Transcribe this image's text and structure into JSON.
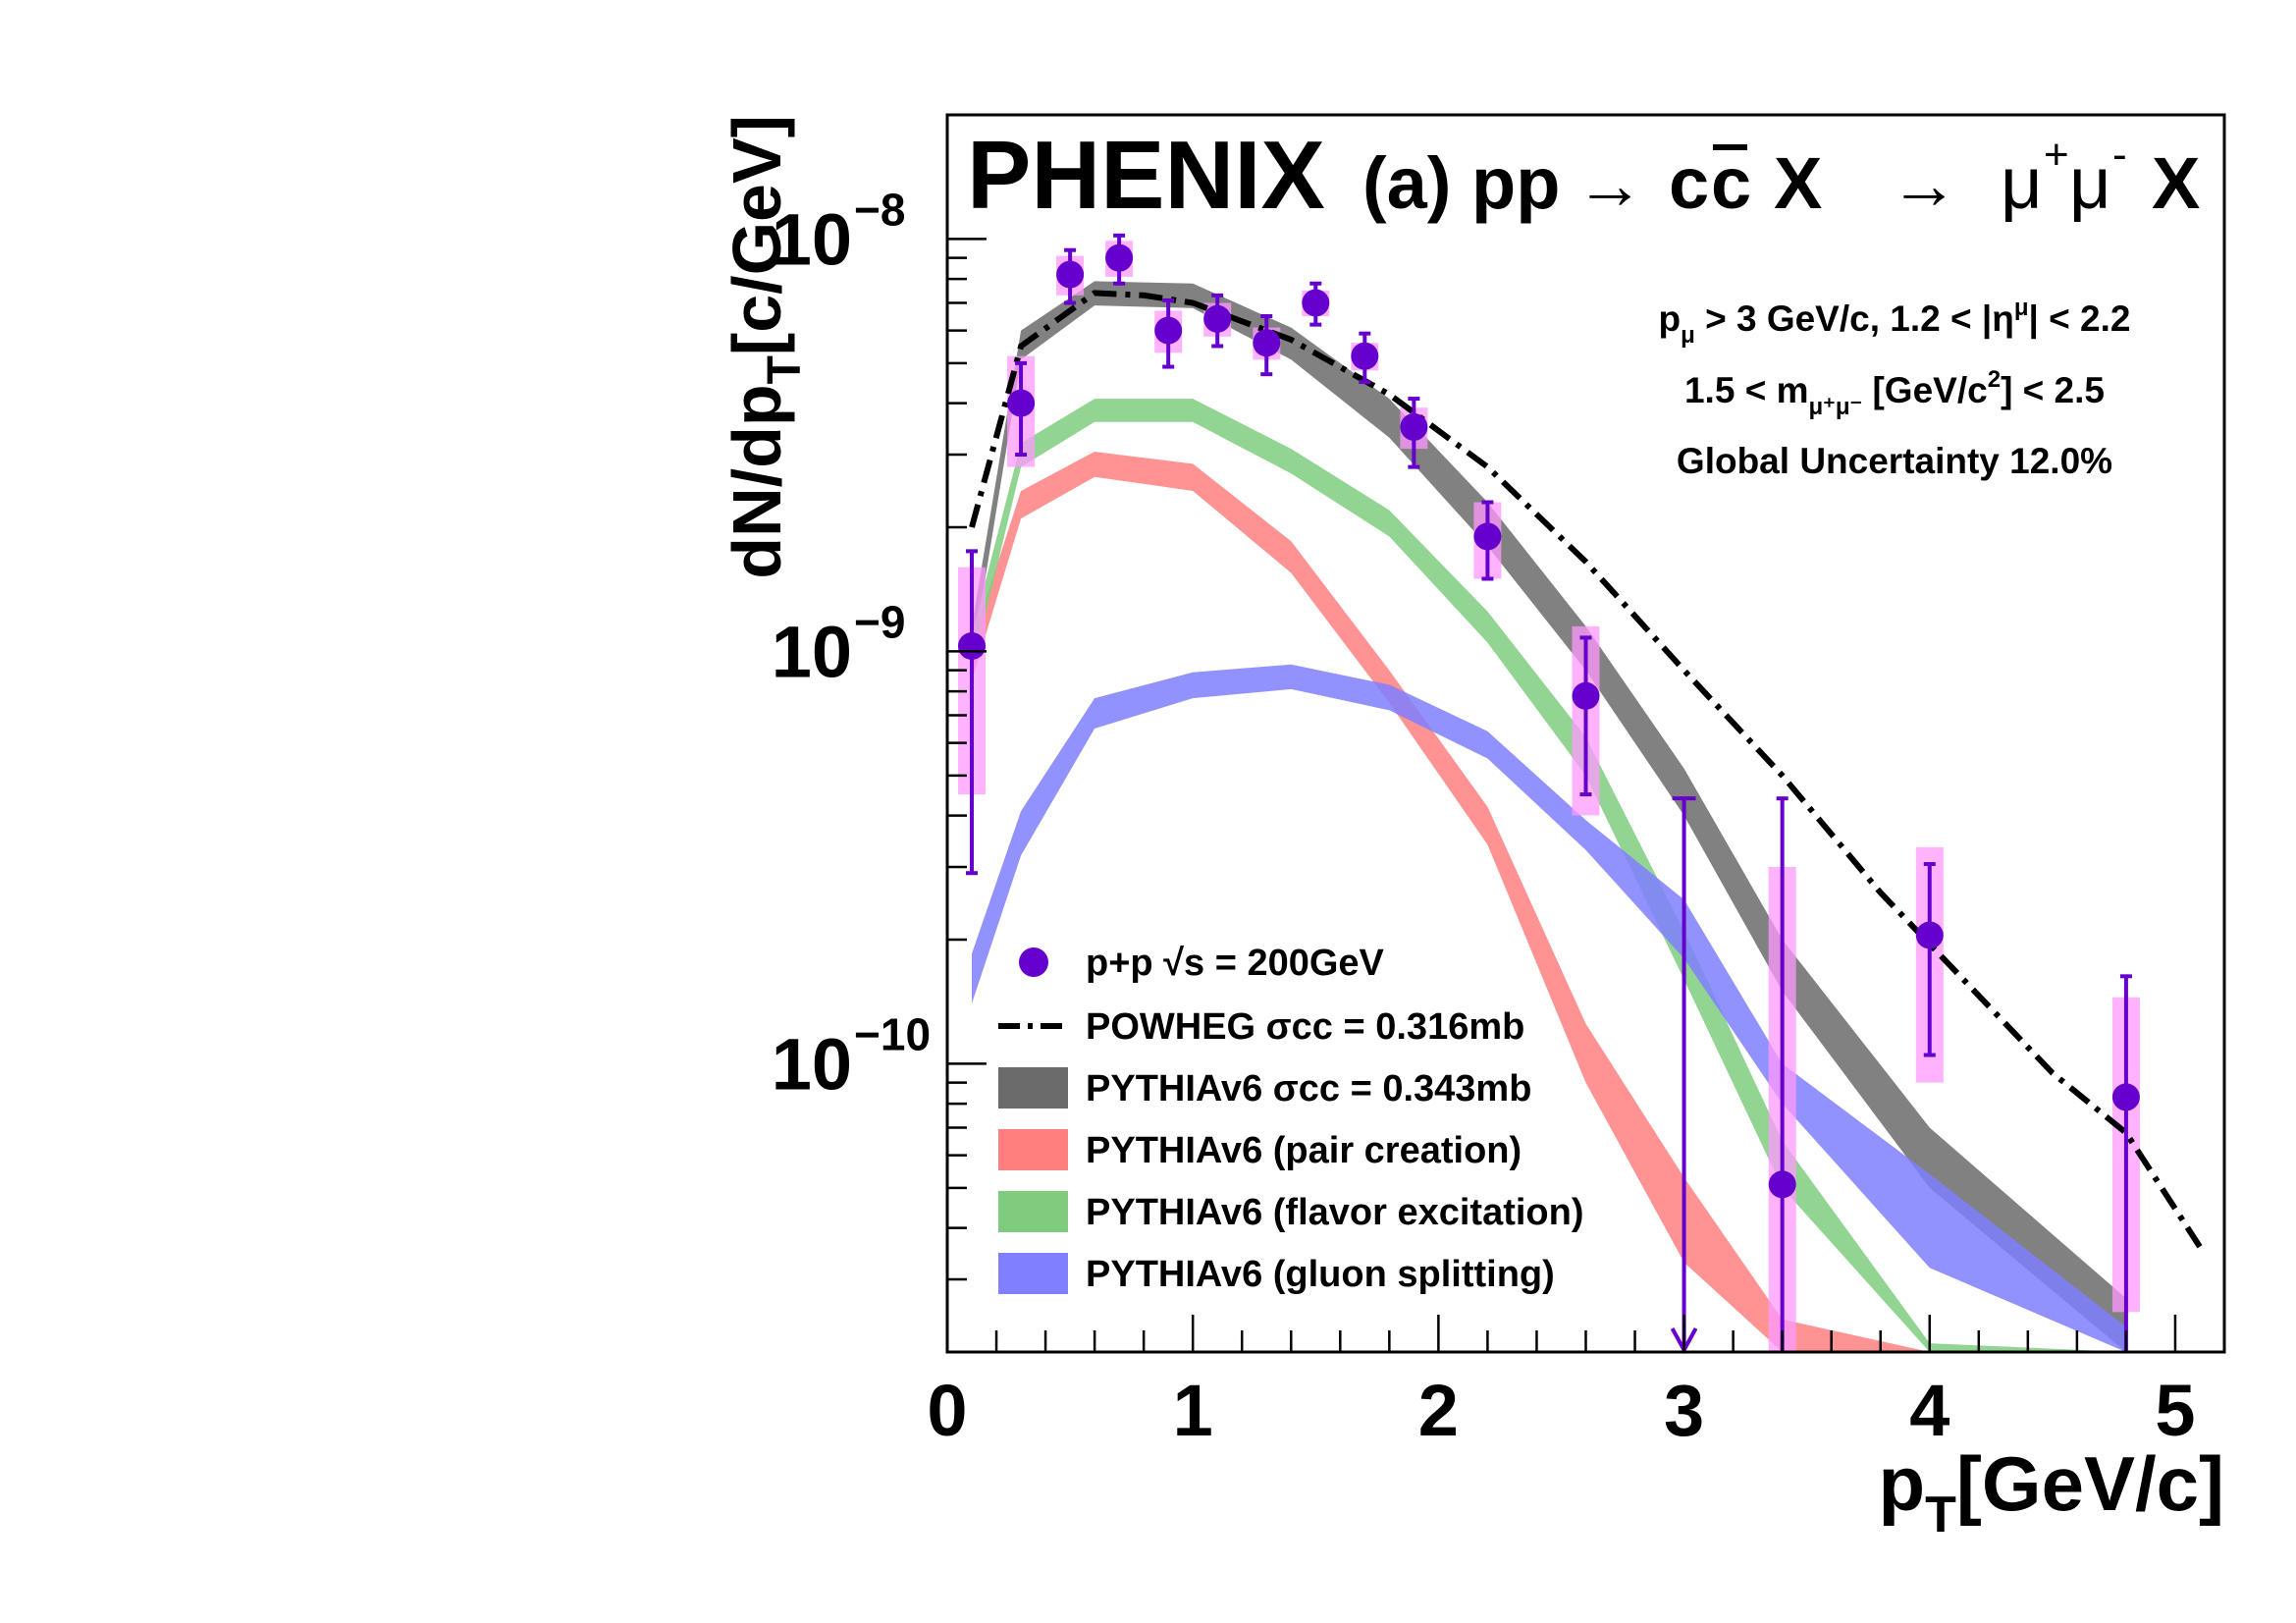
{
  "chart_data": {
    "type": "line",
    "experiment": "PHENIX",
    "title_parts": {
      "panel": "(a) pp",
      "arrow1": "→",
      "cc": "c",
      "ccbar": "c",
      "x1": "X",
      "arrow2": "→",
      "mu_plus": "μ",
      "plus": "+",
      "mu_minus": "μ",
      "minus": "-",
      "x2": "X"
    },
    "cuts": {
      "line1_pre": "p",
      "line1_sub": "μ",
      "line1_mid": " > 3 GeV/c, 1.2 < |η",
      "line1_sup": "μ",
      "line1_post": "| < 2.2",
      "line2_pre": "1.5 < m",
      "line2_sub": "μ⁺μ⁻",
      "line2_mid": " [GeV/c",
      "line2_sup": "2",
      "line2_post": "] < 2.5",
      "line3": "Global Uncertainty 12.0%"
    },
    "xaxis": {
      "label_main": "p",
      "label_sub": "T",
      "label_rest": "[GeV/c]",
      "range": [
        0,
        5.2
      ],
      "ticks": [
        0,
        1,
        2,
        3,
        4,
        5
      ],
      "tick_labels": [
        "0",
        "1",
        "2",
        "3",
        "4",
        "5"
      ]
    },
    "yaxis": {
      "label_main": "dN/dp",
      "label_sub": "T",
      "label_rest": "[c/GeV]",
      "scale": "log",
      "range": [
        2e-11,
        2e-08
      ],
      "ticks": [
        1e-10,
        1e-09,
        1e-08
      ],
      "tick_labels": [
        {
          "base": "10",
          "exp": "−10"
        },
        {
          "base": "10",
          "exp": "−9"
        },
        {
          "base": "10",
          "exp": "−8"
        }
      ]
    },
    "legend": {
      "placement": "bottom-left",
      "entries": [
        {
          "label": "p+p  √s = 200GeV",
          "kind": "marker"
        },
        {
          "label": "POWHEG σcc = 0.316mb",
          "kind": "dashdot"
        },
        {
          "label": "PYTHIAv6  σcc = 0.343mb",
          "kind": "band",
          "color": "#6b6b6b"
        },
        {
          "label": "PYTHIAv6 (pair creation)",
          "kind": "band",
          "color": "#ff7f7f"
        },
        {
          "label": "PYTHIAv6 (flavor excitation)",
          "kind": "band",
          "color": "#7fcc7f"
        },
        {
          "label": "PYTHIAv6 (gluon splitting)",
          "kind": "band",
          "color": "#7f7fff"
        }
      ]
    },
    "colors": {
      "data_marker": "#6600cc",
      "sys_box": "#ff99ff",
      "total_band": "#6b6b6b",
      "pair_band": "#ff7f7f",
      "flavor_band": "#7fcc7f",
      "gluon_band": "#7f7fff",
      "powheg": "#000000"
    },
    "data_points": [
      {
        "x": 0.1,
        "y": 1.03e-09,
        "stat": [
          2.9e-10,
          1.75e-09
        ],
        "sys": [
          4.5e-10,
          1.6e-09
        ]
      },
      {
        "x": 0.3,
        "y": 4e-09,
        "stat": [
          3e-09,
          5e-09
        ],
        "sys": [
          2.8e-09,
          5.2e-09
        ]
      },
      {
        "x": 0.5,
        "y": 8.2e-09,
        "stat": [
          7e-09,
          9.4e-09
        ],
        "sys": [
          7.3e-09,
          9.1e-09
        ]
      },
      {
        "x": 0.7,
        "y": 9e-09,
        "stat": [
          7.8e-09,
          1.02e-08
        ],
        "sys": [
          8.1e-09,
          9.9e-09
        ]
      },
      {
        "x": 0.9,
        "y": 6e-09,
        "stat": [
          4.9e-09,
          7.1e-09
        ],
        "sys": [
          5.3e-09,
          6.7e-09
        ]
      },
      {
        "x": 1.1,
        "y": 6.4e-09,
        "stat": [
          5.5e-09,
          7.3e-09
        ],
        "sys": [
          5.8e-09,
          7e-09
        ]
      },
      {
        "x": 1.3,
        "y": 5.6e-09,
        "stat": [
          4.7e-09,
          6.5e-09
        ],
        "sys": [
          5.1e-09,
          6.1e-09
        ]
      },
      {
        "x": 1.5,
        "y": 7e-09,
        "stat": [
          6.2e-09,
          7.8e-09
        ],
        "sys": [
          6.5e-09,
          7.5e-09
        ]
      },
      {
        "x": 1.7,
        "y": 5.2e-09,
        "stat": [
          4.5e-09,
          5.9e-09
        ],
        "sys": [
          4.8e-09,
          5.6e-09
        ]
      },
      {
        "x": 1.9,
        "y": 3.5e-09,
        "stat": [
          2.8e-09,
          4.1e-09
        ],
        "sys": [
          3.1e-09,
          3.9e-09
        ]
      },
      {
        "x": 2.2,
        "y": 1.9e-09,
        "stat": [
          1.5e-09,
          2.3e-09
        ],
        "sys": [
          1.5e-09,
          2.3e-09
        ]
      },
      {
        "x": 2.6,
        "y": 7.8e-10,
        "stat": [
          4.5e-10,
          1.08e-09
        ],
        "sys": [
          4e-10,
          1.15e-09
        ]
      },
      {
        "x": 3.0,
        "upper_limit": 4.4e-10
      },
      {
        "x": 3.4,
        "y": 5.1e-11,
        "stat": [
          2e-11,
          4.4e-10
        ],
        "sys": [
          2e-11,
          3e-10
        ]
      },
      {
        "x": 4.0,
        "y": 2.05e-10,
        "stat": [
          1.05e-10,
          3.05e-10
        ],
        "sys": [
          9e-11,
          3.35e-10
        ]
      },
      {
        "x": 4.8,
        "y": 8.3e-11,
        "stat": [
          2e-11,
          1.63e-10
        ],
        "sys": [
          2.5e-11,
          1.45e-10
        ]
      }
    ],
    "powheg_curve": {
      "x": [
        0.1,
        0.3,
        0.6,
        0.8,
        1.0,
        1.4,
        1.8,
        2.2,
        2.6,
        3.0,
        3.4,
        3.8,
        4.0,
        4.5,
        4.8,
        5.1
      ],
      "y": [
        2e-09,
        5.5e-09,
        7.4e-09,
        7.3e-09,
        7e-09,
        5.7e-09,
        4.2e-09,
        2.8e-09,
        1.65e-09,
        9e-10,
        5e-10,
        2.6e-10,
        1.95e-10,
        9.5e-11,
        6.8e-11,
        3.6e-11
      ]
    },
    "bands": [
      {
        "name": "total",
        "x": [
          0.1,
          0.3,
          0.6,
          1.0,
          1.4,
          1.8,
          2.2,
          2.6,
          3.0,
          3.4,
          4.0,
          4.8
        ],
        "lo": [
          9.5e-10,
          5.1e-09,
          6.9e-09,
          6.8e-09,
          5.1e-09,
          3.3e-09,
          1.8e-09,
          9e-10,
          4e-10,
          1.5e-10,
          5e-11,
          2e-11
        ],
        "hi": [
          1.15e-09,
          6e-09,
          7.9e-09,
          7.8e-09,
          6.1e-09,
          4.1e-09,
          2.3e-09,
          1.15e-09,
          5.2e-10,
          2e-10,
          7e-11,
          2.7e-11
        ]
      },
      {
        "name": "pair",
        "x": [
          0.1,
          0.3,
          0.6,
          1.0,
          1.4,
          1.8,
          2.2,
          2.6,
          3.0,
          3.4,
          4.0
        ],
        "lo": [
          8.5e-10,
          2.1e-09,
          2.65e-09,
          2.45e-09,
          1.55e-09,
          7.5e-10,
          3.4e-10,
          9e-11,
          3.3e-11,
          2e-11,
          2e-11
        ],
        "hi": [
          1.05e-09,
          2.45e-09,
          3.05e-09,
          2.85e-09,
          1.85e-09,
          9e-10,
          4.2e-10,
          1.25e-10,
          5.3e-11,
          2.4e-11,
          2e-11
        ]
      },
      {
        "name": "flavor",
        "x": [
          0.1,
          0.3,
          0.6,
          1.0,
          1.4,
          1.8,
          2.2,
          2.6,
          3.0,
          3.4,
          4.0,
          4.8
        ],
        "lo": [
          9e-10,
          2.8e-09,
          3.6e-09,
          3.6e-09,
          2.7e-09,
          1.9e-09,
          1.05e-09,
          5e-10,
          1.6e-10,
          5e-11,
          2e-11,
          2e-11
        ],
        "hi": [
          1.1e-09,
          3.2e-09,
          4.1e-09,
          4.1e-09,
          3.1e-09,
          2.2e-09,
          1.25e-09,
          6.2e-10,
          2.1e-10,
          6.5e-11,
          2.1e-11,
          2e-11
        ]
      },
      {
        "name": "gluon",
        "x": [
          0.1,
          0.3,
          0.6,
          1.0,
          1.4,
          1.8,
          2.2,
          2.6,
          3.0,
          3.4,
          4.0,
          4.8
        ],
        "lo": [
          1.4e-10,
          3.2e-10,
          6.5e-10,
          7.7e-10,
          8.1e-10,
          7.2e-10,
          5.5e-10,
          3.3e-10,
          1.8e-10,
          8e-11,
          3.2e-11,
          2e-11
        ],
        "hi": [
          1.85e-10,
          4.1e-10,
          7.7e-10,
          8.9e-10,
          9.3e-10,
          8.3e-10,
          6.4e-10,
          3.9e-10,
          2.5e-10,
          1e-10,
          5.4e-11,
          2.3e-11
        ]
      }
    ]
  }
}
